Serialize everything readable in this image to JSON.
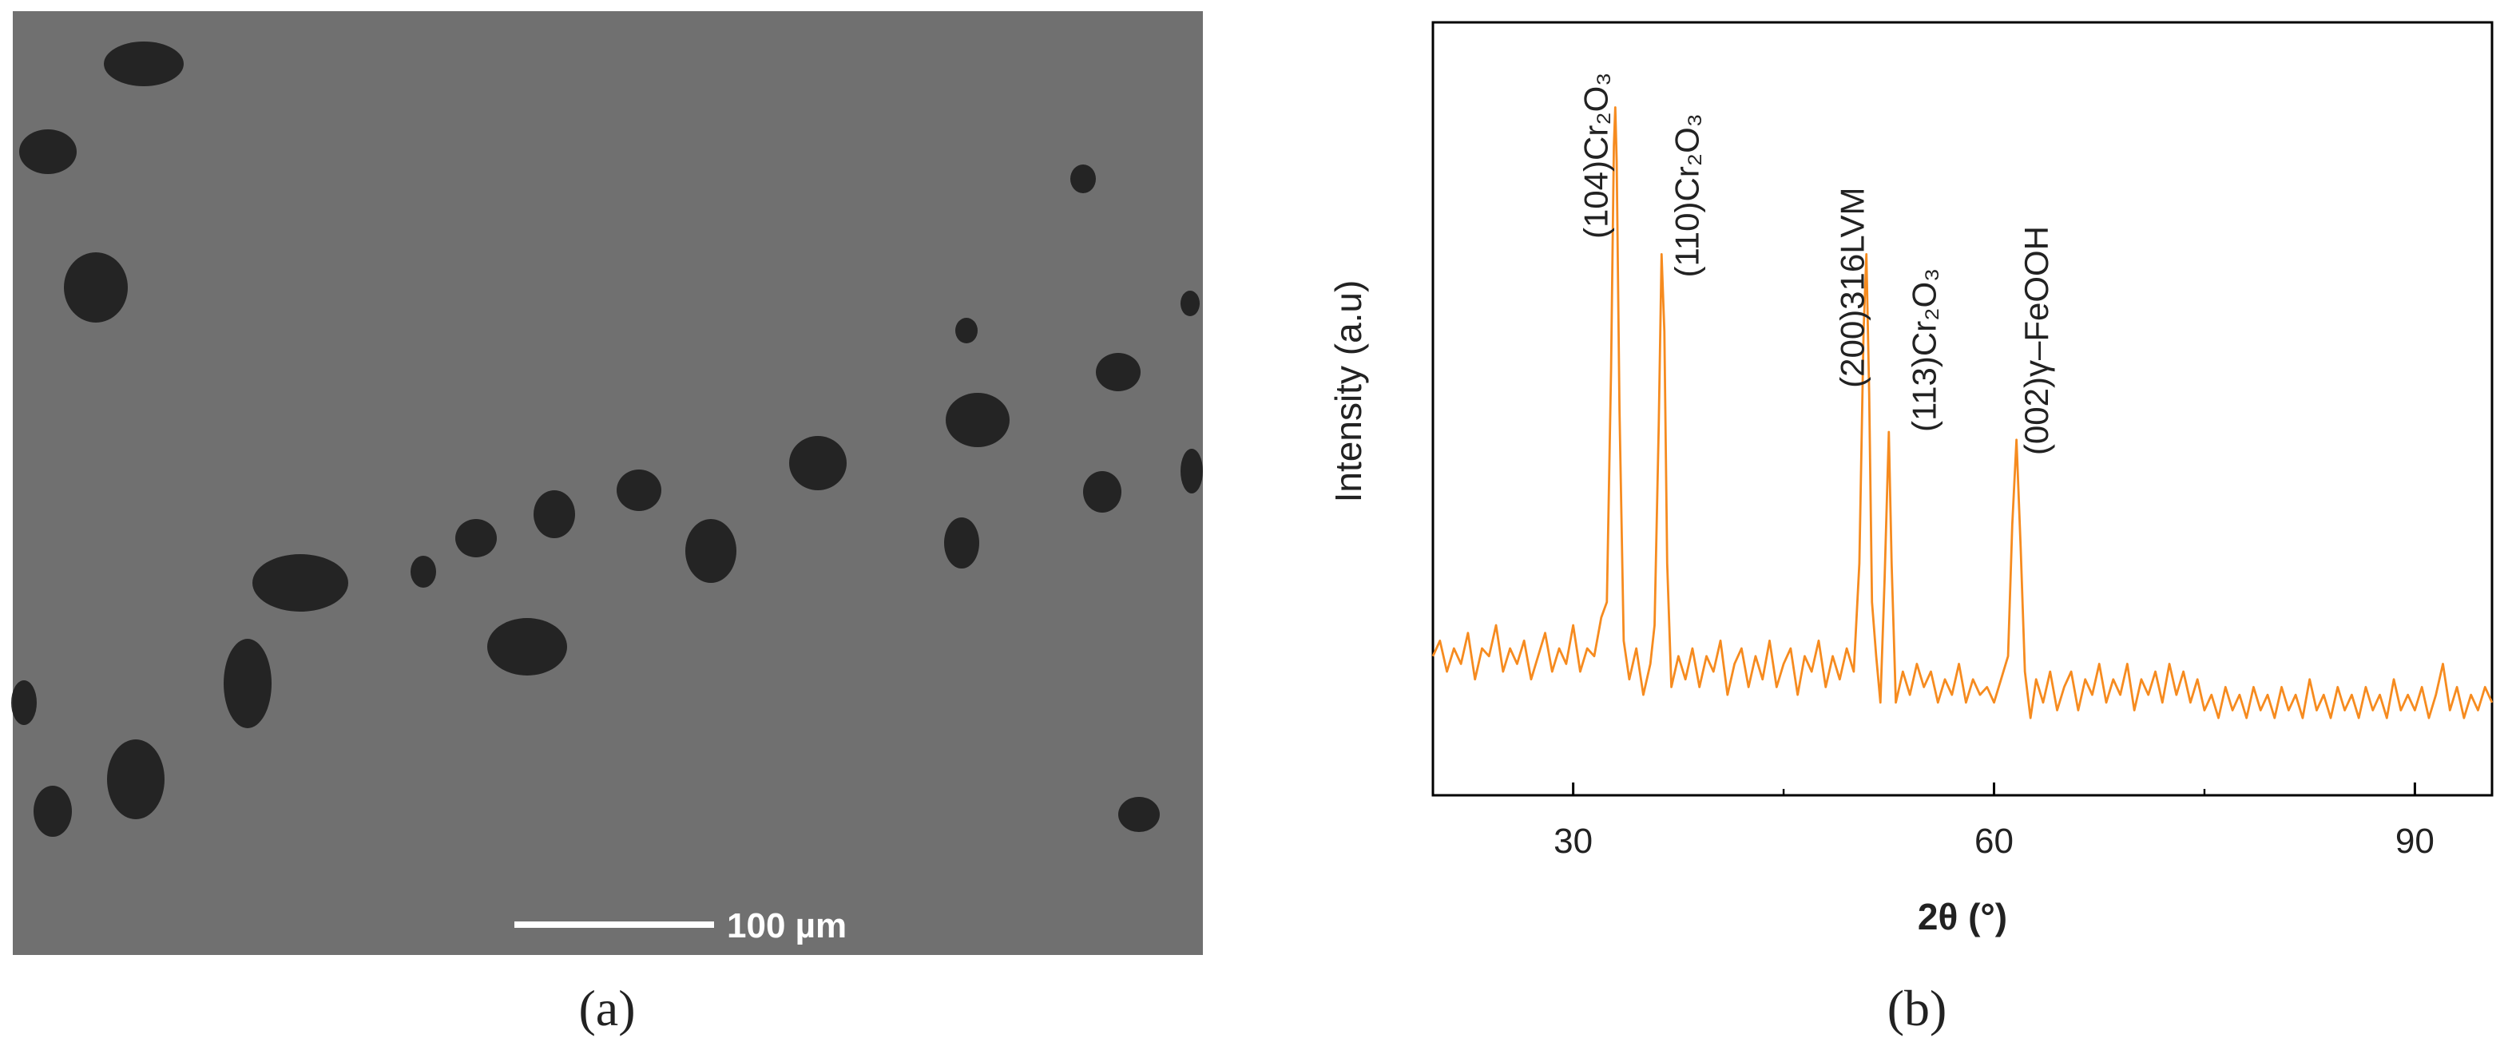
{
  "image_panel": {
    "scale_bar_label": "100 µm",
    "caption": "(a)"
  },
  "chart_data": {
    "type": "line",
    "caption": "(b)",
    "x_label": "2θ (°)",
    "y_label": "Intensity (a.u)",
    "color": "#f68b1f",
    "xlim": [
      20,
      95.5
    ],
    "ylim": [
      0,
      100
    ],
    "xticks": [
      30,
      60,
      90
    ],
    "xminorticks": [
      45,
      75
    ],
    "annotations": [
      {
        "text": "(104)Cr₂O₃",
        "x": 31.8,
        "y": 72
      },
      {
        "text": "(110)Cr₂O₃",
        "x": 38.3,
        "y": 67
      },
      {
        "text": "(200)316LVM",
        "x": 50.1,
        "y": 52.7
      },
      {
        "text": "(113)Cr₂O₃",
        "x": 55.2,
        "y": 47
      },
      {
        "text": "(002)γ–FeOOH",
        "x": 63.2,
        "y": 44
      }
    ],
    "x": [
      20,
      20.5,
      21,
      21.5,
      22,
      22.5,
      23,
      23.5,
      24,
      24.5,
      25,
      25.5,
      26,
      26.5,
      27,
      27.5,
      28,
      28.5,
      29,
      29.5,
      30,
      30.5,
      31,
      31.5,
      32,
      32.4,
      32.7,
      32.9,
      33.0,
      33.1,
      33.3,
      33.6,
      34,
      34.5,
      35,
      35.5,
      35.8,
      36.1,
      36.3,
      36.5,
      36.7,
      37,
      37.5,
      38,
      38.5,
      39,
      39.5,
      40,
      40.5,
      41,
      41.5,
      42,
      42.5,
      43,
      43.5,
      44,
      44.5,
      45,
      45.5,
      46,
      46.5,
      47,
      47.5,
      48,
      48.5,
      49,
      49.5,
      50,
      50.4,
      50.7,
      50.9,
      51.1,
      51.3,
      51.6,
      51.9,
      52.2,
      52.5,
      52.7,
      53,
      53.5,
      54,
      54.5,
      55,
      55.5,
      56,
      56.5,
      57,
      57.5,
      58,
      58.5,
      59,
      59.5,
      60,
      60.5,
      61,
      61.3,
      61.6,
      61.9,
      62.2,
      62.6,
      63,
      63.5,
      64,
      64.5,
      65,
      65.5,
      66,
      66.5,
      67,
      67.5,
      68,
      68.5,
      69,
      69.5,
      70,
      70.5,
      71,
      71.5,
      72,
      72.5,
      73,
      73.5,
      74,
      74.5,
      75,
      75.5,
      76,
      76.5,
      77,
      77.5,
      78,
      78.5,
      79,
      79.5,
      80,
      80.5,
      81,
      81.5,
      82,
      82.5,
      83,
      83.5,
      84,
      84.5,
      85,
      85.5,
      86,
      86.5,
      87,
      87.5,
      88,
      88.5,
      89,
      89.5,
      90,
      90.5,
      91,
      91.5,
      92,
      92.5,
      93,
      93.5,
      94,
      94.5,
      95,
      95.5
    ],
    "values": [
      18,
      20,
      16,
      19,
      17,
      21,
      15,
      19,
      18,
      22,
      16,
      19,
      17,
      20,
      15,
      18,
      21,
      16,
      19,
      17,
      22,
      16,
      19,
      18,
      23,
      25,
      55,
      84,
      89,
      82,
      50,
      20,
      15,
      19,
      13,
      17,
      22,
      48,
      70,
      60,
      30,
      14,
      18,
      15,
      19,
      14,
      18,
      16,
      20,
      13,
      17,
      19,
      14,
      18,
      15,
      20,
      14,
      17,
      19,
      13,
      18,
      16,
      20,
      14,
      18,
      15,
      19,
      16,
      30,
      60,
      70,
      52,
      25,
      18,
      12,
      28,
      47,
      30,
      12,
      16,
      13,
      17,
      14,
      16,
      12,
      15,
      13,
      17,
      12,
      15,
      13,
      14,
      12,
      15,
      18,
      35,
      46,
      32,
      16,
      10,
      15,
      12,
      16,
      11,
      14,
      16,
      11,
      15,
      13,
      17,
      12,
      15,
      13,
      17,
      11,
      15,
      13,
      16,
      12,
      17,
      13,
      16,
      12,
      15,
      11,
      13,
      10,
      14,
      11,
      13,
      10,
      14,
      11,
      13,
      10,
      14,
      11,
      13,
      10,
      15,
      11,
      13,
      10,
      14,
      11,
      13,
      10,
      14,
      11,
      13,
      10,
      15,
      11,
      13,
      11,
      14,
      10,
      13,
      17,
      11,
      14,
      10,
      13,
      11,
      14,
      12
    ]
  }
}
